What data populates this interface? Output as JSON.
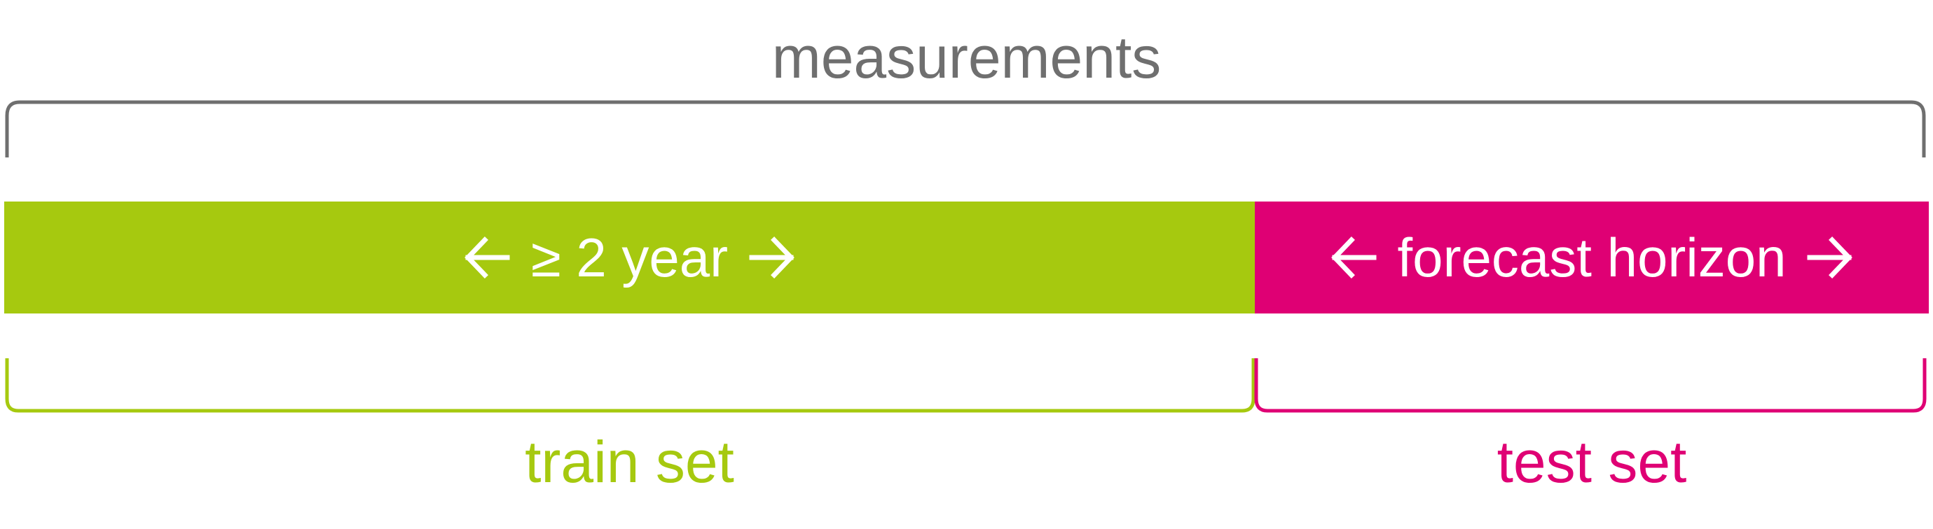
{
  "labels": {
    "measurements": "measurements",
    "train_segment": "≥ 2 year",
    "test_segment": "forecast horizon",
    "train_set": "train set",
    "test_set": "test set"
  },
  "colors": {
    "train": "#a6c90f",
    "test": "#df0074",
    "measurements_bracket": "#6f6f6f",
    "segment_text": "#ffffff"
  },
  "icons": {
    "left_arrow": "arrow-left-icon",
    "right_arrow": "arrow-right-icon"
  }
}
